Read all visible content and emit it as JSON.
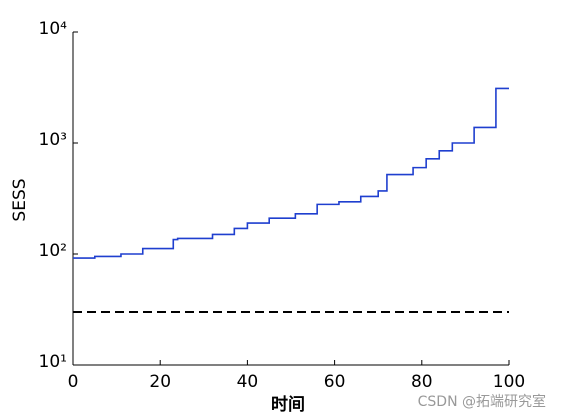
{
  "chart_data": {
    "type": "line",
    "xlabel": "时间",
    "ylabel": "SESS",
    "log_y": true,
    "xlim": [
      0,
      100
    ],
    "xticks": [
      0,
      20,
      40,
      60,
      80,
      100
    ],
    "ylim": [
      10,
      10000
    ],
    "yticks": [
      {
        "value": 10,
        "label": "10¹"
      },
      {
        "value": 100,
        "label": "10²"
      },
      {
        "value": 1000,
        "label": "10³"
      },
      {
        "value": 10000,
        "label": "10⁴"
      }
    ],
    "series": [
      {
        "color": "#1f3fcf",
        "dashed": false,
        "x": [
          0,
          5,
          5,
          11,
          11,
          16,
          16,
          23,
          23,
          24,
          24,
          32,
          32,
          37,
          37,
          40,
          40,
          45,
          45,
          51,
          51,
          56,
          56,
          61,
          61,
          66,
          66,
          70,
          70,
          72,
          72,
          78,
          78,
          81,
          81,
          84,
          84,
          87,
          87,
          92,
          92,
          97,
          97,
          100
        ],
        "values": [
          92,
          92,
          95,
          95,
          100,
          100,
          112,
          112,
          135,
          135,
          138,
          138,
          150,
          150,
          170,
          170,
          190,
          190,
          210,
          210,
          230,
          230,
          280,
          280,
          295,
          295,
          330,
          330,
          370,
          370,
          520,
          520,
          600,
          600,
          720,
          720,
          850,
          850,
          1000,
          1000,
          1380,
          1380,
          3100,
          3100
        ]
      },
      {
        "color": "#000000",
        "dashed": true,
        "x": [
          0,
          100
        ],
        "values": [
          30,
          30
        ]
      }
    ],
    "watermark": "CSDN @拓端研究室"
  }
}
